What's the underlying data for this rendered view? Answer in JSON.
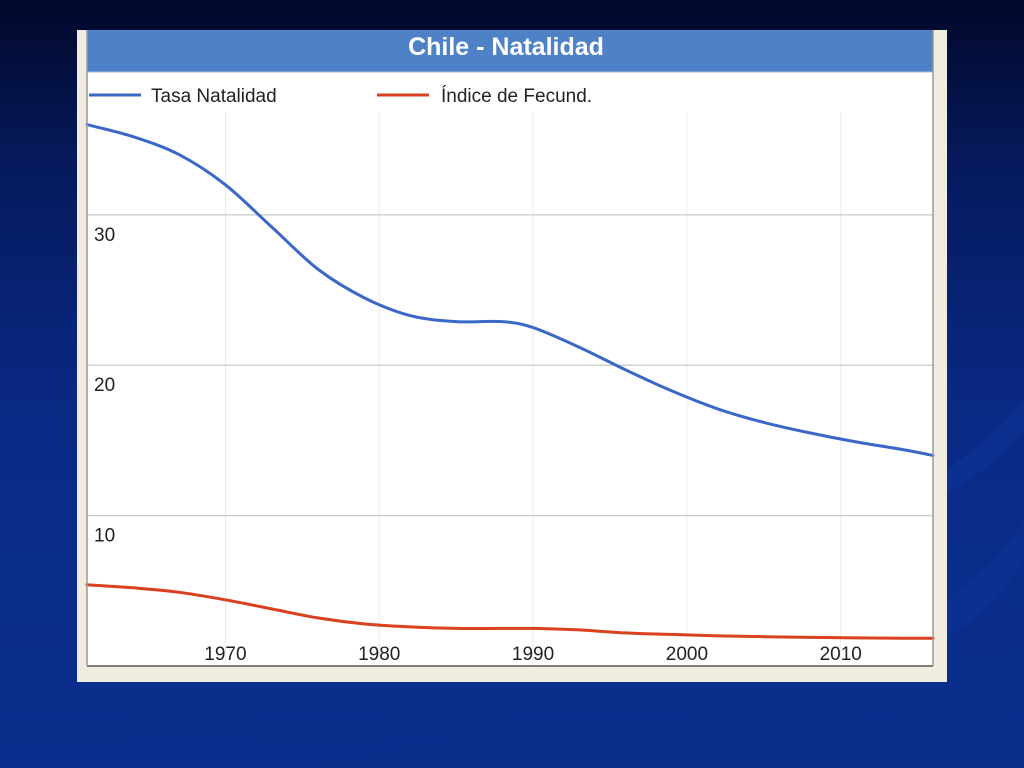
{
  "colors": {
    "slide_background": "#0b2e8e",
    "title_bar": "#4f81c7",
    "series_blue": "#3a67c8",
    "series_red": "#d8401f",
    "grid": "#c8c8c8"
  },
  "chart_data": {
    "type": "line",
    "title": "Chile - Natalidad",
    "xlabel": "",
    "ylabel": "",
    "xlim": [
      1961,
      2016
    ],
    "ylim": [
      0,
      39.5
    ],
    "grid": true,
    "legend_position": "top-left",
    "x_ticks": [
      1970,
      1980,
      1990,
      2000,
      2010
    ],
    "y_ticks": [
      10,
      20,
      30
    ],
    "series": [
      {
        "name": "Tasa Natalidad",
        "color": "#3a67c8",
        "x": [
          1961,
          1964,
          1967,
          1970,
          1973,
          1976,
          1979,
          1982,
          1985,
          1988,
          1990,
          1993,
          1996,
          1999,
          2002,
          2005,
          2008,
          2011,
          2014,
          2016
        ],
        "y": [
          36.0,
          35.2,
          34.0,
          32.0,
          29.2,
          26.4,
          24.5,
          23.3,
          22.9,
          22.9,
          22.5,
          21.2,
          19.7,
          18.3,
          17.1,
          16.2,
          15.5,
          14.9,
          14.4,
          14.0
        ]
      },
      {
        "name": "Índice de Fecund.",
        "color": "#d8401f",
        "x": [
          1961,
          1964,
          1967,
          1970,
          1973,
          1976,
          1979,
          1982,
          1985,
          1988,
          1990,
          1993,
          1996,
          1999,
          2002,
          2005,
          2008,
          2011,
          2014,
          2016
        ],
        "y": [
          5.4,
          5.2,
          4.9,
          4.4,
          3.8,
          3.2,
          2.8,
          2.6,
          2.5,
          2.5,
          2.5,
          2.4,
          2.2,
          2.1,
          2.0,
          1.95,
          1.9,
          1.87,
          1.85,
          1.85
        ]
      }
    ]
  }
}
